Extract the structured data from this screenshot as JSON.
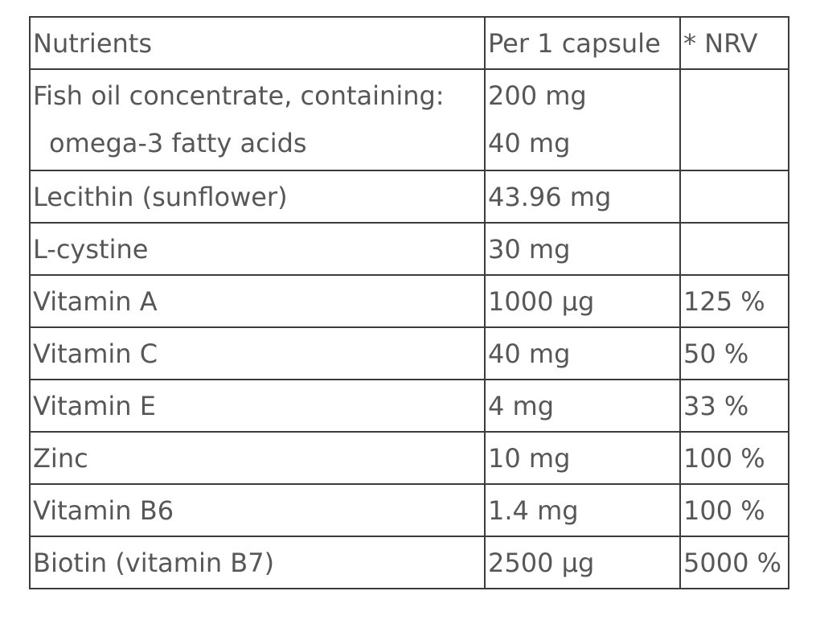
{
  "table": {
    "headers": [
      "Nutrients",
      "Per 1 capsule",
      "* NRV"
    ],
    "fish_oil": {
      "nutrient": "Fish oil concentrate, containing:",
      "sub_nutrient": "omega-3 fatty acids",
      "amount": "200 mg",
      "sub_amount": "40 mg",
      "nrv": ""
    },
    "rows": [
      {
        "nutrient": "Lecithin (sunflower)",
        "amount": "43.96 mg",
        "nrv": ""
      },
      {
        "nutrient": "L-cystine",
        "amount": "30 mg",
        "nrv": ""
      },
      {
        "nutrient": "Vitamin A",
        "amount": "1000 µg",
        "nrv": "125 %"
      },
      {
        "nutrient": "Vitamin C",
        "amount": "40 mg",
        "nrv": "50 %"
      },
      {
        "nutrient": "Vitamin E",
        "amount": "4 mg",
        "nrv": "33 %"
      },
      {
        "nutrient": "Zinc",
        "amount": "10 mg",
        "nrv": "100 %"
      },
      {
        "nutrient": "Vitamin B6",
        "amount": "1.4 mg",
        "nrv": "100 %"
      },
      {
        "nutrient": "Biotin (vitamin B7)",
        "amount": "2500 µg",
        "nrv": "5000 %"
      }
    ]
  }
}
